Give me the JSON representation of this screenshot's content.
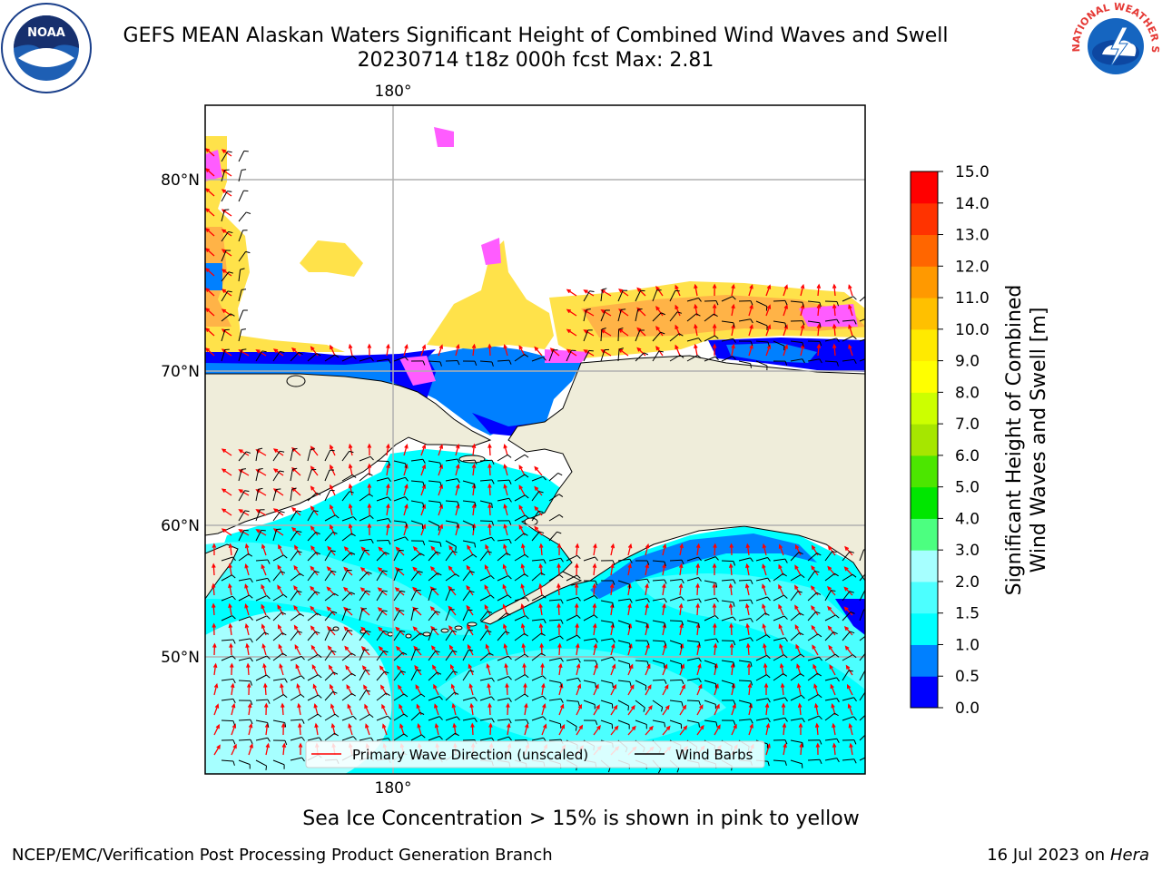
{
  "header": {
    "title_line1": "GEFS MEAN Alaskan Waters Significant Height of Combined Wind Waves and Swell",
    "title_line2": "20230714 t18z 000h fcst   Max: 2.81"
  },
  "logos": {
    "left": {
      "icon": "noaa-logo-icon",
      "text": "NOAA"
    },
    "right": {
      "icon": "nws-logo-icon",
      "text": "NATIONAL WEATHER SERVICE"
    }
  },
  "map": {
    "lon_label_top": "180°",
    "lon_label_bottom": "180°",
    "lat_labels": [
      "80°N",
      "70°N",
      "60°N",
      "50°N"
    ],
    "colors": {
      "land": "#efedda",
      "ocean_deep": "#00ffff",
      "ocean_light": "#a6ffff",
      "ocean_mid": "#4cffff",
      "blue": "#0000ff",
      "midblue": "#0080ff",
      "ice_yellow": "#ffe24a",
      "ice_orange": "#ffb347",
      "ice_pink": "#ff5cff",
      "arrow": "#ff0000",
      "barb": "#000000"
    }
  },
  "legend": {
    "wave_direction": "Primary Wave Direction (unscaled)",
    "wind_barbs": "Wind Barbs"
  },
  "colorbar": {
    "label_line1": "Significant Height of Combined",
    "label_line2": "Wind Waves and Swell [m]",
    "ticks": [
      "0.0",
      "0.5",
      "1.0",
      "1.5",
      "2.0",
      "3.0",
      "4.0",
      "5.0",
      "6.0",
      "7.0",
      "8.0",
      "9.0",
      "10.0",
      "11.0",
      "12.0",
      "13.0",
      "14.0",
      "15.0"
    ],
    "colors": [
      "#0000ff",
      "#0080ff",
      "#00ffff",
      "#4cffff",
      "#a6ffff",
      "#4cff80",
      "#00e600",
      "#4ce600",
      "#a6e600",
      "#ccff00",
      "#ffff00",
      "#ffea00",
      "#ffc000",
      "#ff9900",
      "#ff6600",
      "#ff3300",
      "#ff0000"
    ]
  },
  "caption": "Sea Ice Concentration > 15% is shown in pink to yellow",
  "footer": {
    "left": "NCEP/EMC/Verification Post Processing Product Generation Branch",
    "right_date": "16 Jul 2023 on",
    "right_host": "Hera"
  }
}
